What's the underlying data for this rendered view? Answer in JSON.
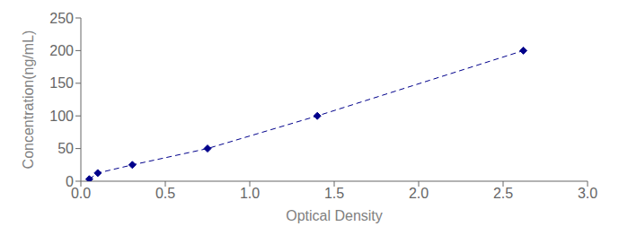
{
  "chart_data": {
    "type": "line",
    "x": [
      0.05,
      0.1,
      0.305,
      0.75,
      1.4,
      2.62
    ],
    "values": [
      3.125,
      12.5,
      25,
      50,
      100,
      200
    ],
    "color": "#00008B",
    "marker": "diamond",
    "line_style": "dashed",
    "xlabel": "Optical Density",
    "ylabel": "Concentration(ng/mL)",
    "xlim": [
      0,
      3
    ],
    "ylim": [
      0,
      250
    ],
    "xticks": [
      {
        "value": 0,
        "label": "0.0"
      },
      {
        "value": 0.5,
        "label": "0.5"
      },
      {
        "value": 1,
        "label": "1.0"
      },
      {
        "value": 1.5,
        "label": "1.5"
      },
      {
        "value": 2,
        "label": "2.0"
      },
      {
        "value": 2.5,
        "label": "2.5"
      },
      {
        "value": 3,
        "label": "3.0"
      }
    ],
    "yticks": [
      0,
      50,
      100,
      150,
      200,
      250
    ],
    "grid": false
  }
}
